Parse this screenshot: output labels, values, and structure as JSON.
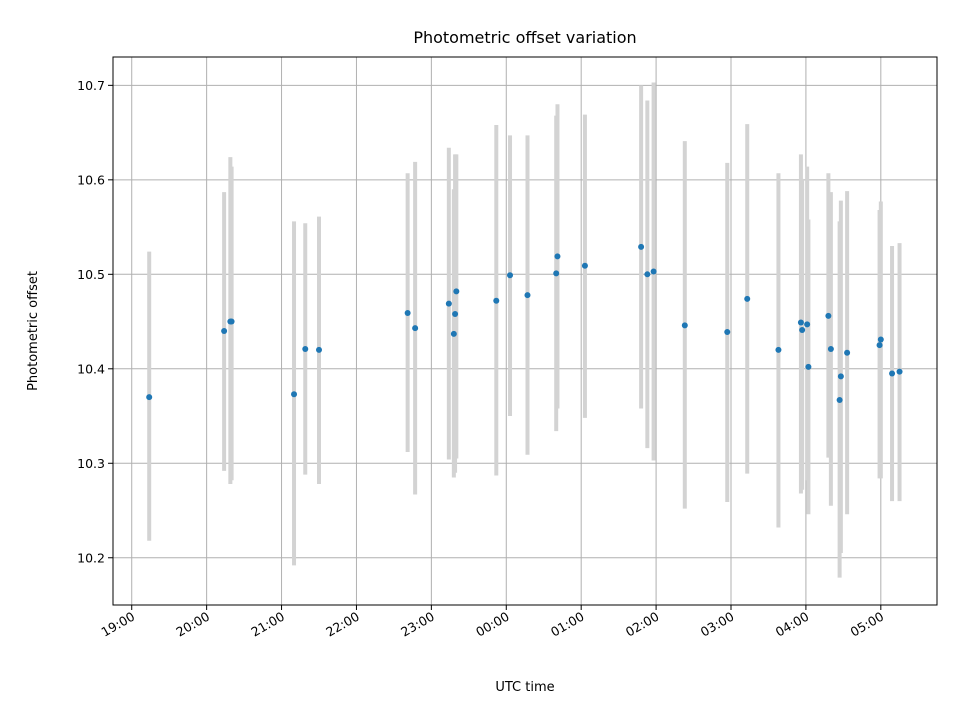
{
  "chart_data": {
    "type": "scatter",
    "title": "Photometric offset variation",
    "xlabel": "UTC time",
    "ylabel": "Photometric offset",
    "x_unit": "UTC time (hours, continuing past midnight)",
    "xlim": [
      "18:45",
      "05:45"
    ],
    "ylim": [
      10.15,
      10.73
    ],
    "x_ticks": [
      "19:00",
      "20:00",
      "21:00",
      "22:00",
      "23:00",
      "00:00",
      "01:00",
      "02:00",
      "03:00",
      "04:00",
      "05:00"
    ],
    "y_ticks": [
      "10.2",
      "10.3",
      "10.4",
      "10.5",
      "10.6",
      "10.7"
    ],
    "y_tick_values": [
      10.2,
      10.3,
      10.4,
      10.5,
      10.6,
      10.7
    ],
    "grid": true,
    "colors": {
      "point": "#1f77b4",
      "errorbar": "#d3d3d3",
      "grid": "#b0b0b0"
    },
    "points": [
      {
        "t": "19:14",
        "y": 10.37,
        "lo": 10.218,
        "hi": 10.524
      },
      {
        "t": "20:14",
        "y": 10.44,
        "lo": 10.292,
        "hi": 10.587
      },
      {
        "t": "20:19",
        "y": 10.45,
        "lo": 10.278,
        "hi": 10.624
      },
      {
        "t": "20:20",
        "y": 10.45,
        "lo": 10.282,
        "hi": 10.614
      },
      {
        "t": "21:10",
        "y": 10.373,
        "lo": 10.192,
        "hi": 10.556
      },
      {
        "t": "21:19",
        "y": 10.421,
        "lo": 10.288,
        "hi": 10.554
      },
      {
        "t": "21:30",
        "y": 10.42,
        "lo": 10.278,
        "hi": 10.561
      },
      {
        "t": "22:41",
        "y": 10.459,
        "lo": 10.312,
        "hi": 10.607
      },
      {
        "t": "22:47",
        "y": 10.443,
        "lo": 10.267,
        "hi": 10.619
      },
      {
        "t": "23:14",
        "y": 10.469,
        "lo": 10.304,
        "hi": 10.634
      },
      {
        "t": "23:18",
        "y": 10.437,
        "lo": 10.285,
        "hi": 10.59
      },
      {
        "t": "23:19",
        "y": 10.458,
        "lo": 10.29,
        "hi": 10.627
      },
      {
        "t": "23:20",
        "y": 10.482,
        "lo": 10.305,
        "hi": 10.627
      },
      {
        "t": "23:52",
        "y": 10.472,
        "lo": 10.287,
        "hi": 10.658
      },
      {
        "t": "00:03",
        "y": 10.499,
        "lo": 10.35,
        "hi": 10.647
      },
      {
        "t": "00:17",
        "y": 10.478,
        "lo": 10.309,
        "hi": 10.647
      },
      {
        "t": "00:40",
        "y": 10.501,
        "lo": 10.334,
        "hi": 10.668
      },
      {
        "t": "00:41",
        "y": 10.519,
        "lo": 10.358,
        "hi": 10.68
      },
      {
        "t": "01:03",
        "y": 10.509,
        "lo": 10.348,
        "hi": 10.669
      },
      {
        "t": "01:48",
        "y": 10.529,
        "lo": 10.358,
        "hi": 10.7
      },
      {
        "t": "01:53",
        "y": 10.5,
        "lo": 10.316,
        "hi": 10.684
      },
      {
        "t": "01:58",
        "y": 10.503,
        "lo": 10.303,
        "hi": 10.703
      },
      {
        "t": "02:23",
        "y": 10.446,
        "lo": 10.252,
        "hi": 10.641
      },
      {
        "t": "02:57",
        "y": 10.439,
        "lo": 10.259,
        "hi": 10.618
      },
      {
        "t": "03:13",
        "y": 10.474,
        "lo": 10.289,
        "hi": 10.659
      },
      {
        "t": "03:38",
        "y": 10.42,
        "lo": 10.232,
        "hi": 10.607
      },
      {
        "t": "03:56",
        "y": 10.449,
        "lo": 10.268,
        "hi": 10.627
      },
      {
        "t": "03:57",
        "y": 10.441,
        "lo": 10.272,
        "hi": 10.601
      },
      {
        "t": "04:01",
        "y": 10.447,
        "lo": 10.282,
        "hi": 10.614
      },
      {
        "t": "04:02",
        "y": 10.402,
        "lo": 10.246,
        "hi": 10.558
      },
      {
        "t": "04:18",
        "y": 10.456,
        "lo": 10.306,
        "hi": 10.607
      },
      {
        "t": "04:20",
        "y": 10.421,
        "lo": 10.255,
        "hi": 10.587
      },
      {
        "t": "04:27",
        "y": 10.367,
        "lo": 10.179,
        "hi": 10.556
      },
      {
        "t": "04:28",
        "y": 10.392,
        "lo": 10.205,
        "hi": 10.578
      },
      {
        "t": "04:33",
        "y": 10.417,
        "lo": 10.246,
        "hi": 10.588
      },
      {
        "t": "04:59",
        "y": 10.425,
        "lo": 10.284,
        "hi": 10.568
      },
      {
        "t": "05:00",
        "y": 10.431,
        "lo": 10.284,
        "hi": 10.577
      },
      {
        "t": "05:09",
        "y": 10.395,
        "lo": 10.26,
        "hi": 10.53
      },
      {
        "t": "05:15",
        "y": 10.397,
        "lo": 10.26,
        "hi": 10.533
      }
    ]
  }
}
